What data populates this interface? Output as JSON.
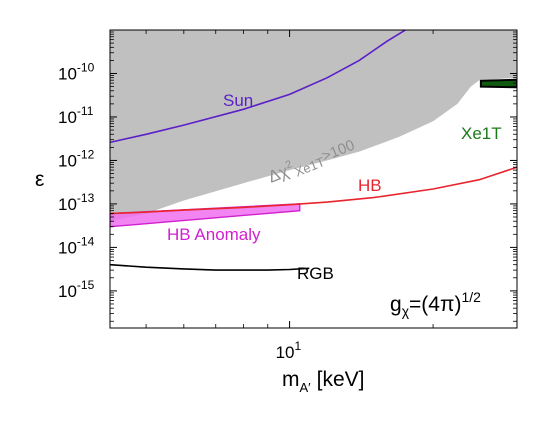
{
  "chart_data": {
    "type": "line",
    "xscale": "log",
    "yscale": "log",
    "xlim": [
      4.2,
      30
    ],
    "ylim": [
      1.4e-16,
      1e-09
    ],
    "grid": false,
    "xlabel": "m",
    "xlabel_sub": "A′",
    "xlabel_unit": "[keV]",
    "ylabel": "ε",
    "x_ticks": [
      {
        "value": 10,
        "base": "10",
        "exp": "1"
      }
    ],
    "y_ticks": [
      {
        "value": 1e-10,
        "base": "10",
        "exp": "-10"
      },
      {
        "value": 1e-11,
        "base": "10",
        "exp": "-11"
      },
      {
        "value": 1e-12,
        "base": "10",
        "exp": "-12"
      },
      {
        "value": 1e-13,
        "base": "10",
        "exp": "-13"
      },
      {
        "value": 1e-14,
        "base": "10",
        "exp": "-14"
      },
      {
        "value": 1e-15,
        "base": "10",
        "exp": "-15"
      }
    ],
    "colors": {
      "excluded_region": "#c0c0c0",
      "sun": "#5a1fc8",
      "hb": "#e8242e",
      "hb_anomaly_fill": "#f070f0",
      "hb_anomaly_edge": "#d020d0",
      "rgb": "#000000",
      "xe1t_fill": "#0f5a0f",
      "xe1t_text": "#1a7a1a"
    },
    "regions": [
      {
        "name": "Δχ² Xe1T>100",
        "label_main": "Δχ",
        "label_sup": "2",
        "label_sub": "Xe1T",
        "label_tail": ">100",
        "boundary": [
          [
            4.2,
            4e-14
          ],
          [
            5,
            6e-14
          ],
          [
            6,
            1.2e-13
          ],
          [
            8,
            3e-13
          ],
          [
            10,
            6e-13
          ],
          [
            12,
            1e-12
          ],
          [
            14,
            1.6e-12
          ],
          [
            17,
            3.5e-12
          ],
          [
            20,
            8e-12
          ],
          [
            22.5,
            2e-11
          ],
          [
            24,
            5e-11
          ],
          [
            25,
            7e-11
          ],
          [
            30,
            8e-11
          ]
        ]
      }
    ],
    "series": [
      {
        "name": "Sun",
        "x": [
          4.2,
          5,
          6,
          8,
          10,
          12,
          14,
          16,
          17.5
        ],
        "y": [
          2.6e-12,
          4e-12,
          6.5e-12,
          1.5e-11,
          3.3e-11,
          8e-11,
          2e-10,
          5.5e-10,
          1e-09
        ]
      },
      {
        "name": "HB",
        "x": [
          4.2,
          5,
          6,
          8,
          10,
          12,
          15,
          20,
          25,
          30
        ],
        "y": [
          6e-14,
          6.5e-14,
          7.2e-14,
          8.3e-14,
          9.6e-14,
          1.1e-13,
          1.4e-13,
          2.2e-13,
          3.6e-13,
          7e-13
        ]
      },
      {
        "name": "RGB",
        "x": [
          4.2,
          5,
          6,
          7,
          8,
          9,
          10,
          11
        ],
        "y": [
          4e-15,
          3.5e-15,
          3.2e-15,
          3e-15,
          3e-15,
          3e-15,
          3.1e-15,
          3.3e-15
        ]
      },
      {
        "name": "HB Anomaly",
        "x": [
          4.2,
          10.5
        ],
        "y_low": [
          3e-14,
          7e-14
        ],
        "y_high": [
          6e-14,
          1e-13
        ]
      },
      {
        "name": "Xe1T",
        "x": [
          25.2,
          30
        ],
        "y_low": [
          5e-11,
          4.8e-11
        ],
        "y_high": [
          6.8e-11,
          7.2e-11
        ]
      }
    ],
    "annotations": [
      {
        "id": "sun",
        "text": "Sun"
      },
      {
        "id": "hb",
        "text": "HB"
      },
      {
        "id": "hb_anomaly",
        "text": "HB Anomaly"
      },
      {
        "id": "rgb",
        "text": "RGB"
      },
      {
        "id": "xe1t",
        "text": "Xe1T"
      },
      {
        "id": "coupling",
        "main": "g",
        "sub": "χ",
        "tail": "=(4π)",
        "sup": "1/2"
      }
    ]
  }
}
